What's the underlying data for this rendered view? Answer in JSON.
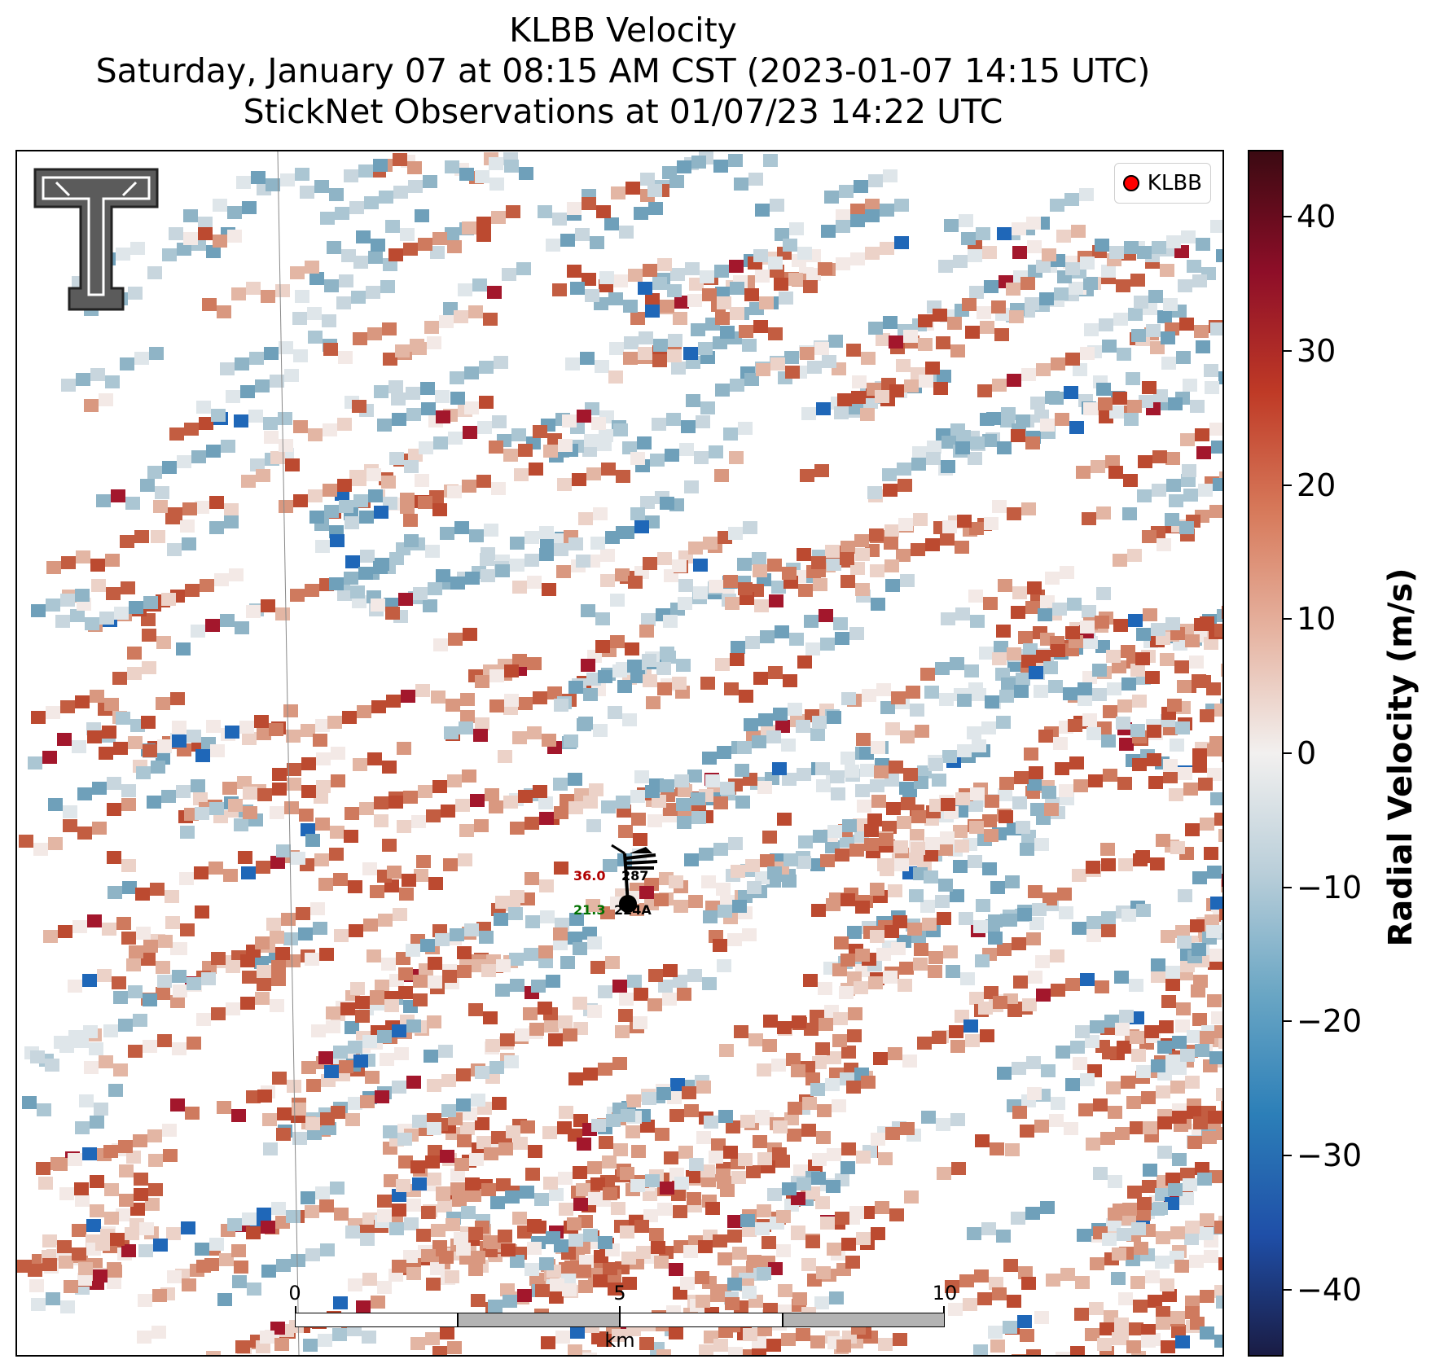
{
  "title": {
    "line1": "KLBB Velocity",
    "line2": "Saturday, January 07 at 08:15 AM CST (2023-01-07 14:15 UTC)",
    "line3": "StickNet Observations at 01/07/23 14:22 UTC"
  },
  "legend": {
    "label": "KLBB",
    "marker_color": "#ff0000"
  },
  "colorbar": {
    "label": "Radial Velocity (m/s)",
    "range": [
      -45,
      45
    ],
    "ticks": [
      "40",
      "30",
      "20",
      "10",
      "0",
      "−10",
      "−20",
      "−30",
      "−40"
    ],
    "tick_values": [
      40,
      30,
      20,
      10,
      0,
      -10,
      -20,
      -30,
      -40
    ],
    "colormap": [
      "#1a1c44",
      "#1f4fa8",
      "#2c7fb8",
      "#6aa6c4",
      "#b9ced9",
      "#f2f0ef",
      "#e6b4a2",
      "#d77a5b",
      "#bf3a26",
      "#8e0e28",
      "#3b0a12"
    ]
  },
  "scalebar": {
    "ticks": [
      "0",
      "5",
      "10"
    ],
    "unit": "km"
  },
  "stations": [
    {
      "id": "287",
      "temperature": "36.0",
      "dewpoint": ""
    },
    {
      "id": "224A",
      "temperature": "",
      "dewpoint": "21.3"
    }
  ],
  "logo": {
    "name": "texas-tech-double-t-logo"
  }
}
